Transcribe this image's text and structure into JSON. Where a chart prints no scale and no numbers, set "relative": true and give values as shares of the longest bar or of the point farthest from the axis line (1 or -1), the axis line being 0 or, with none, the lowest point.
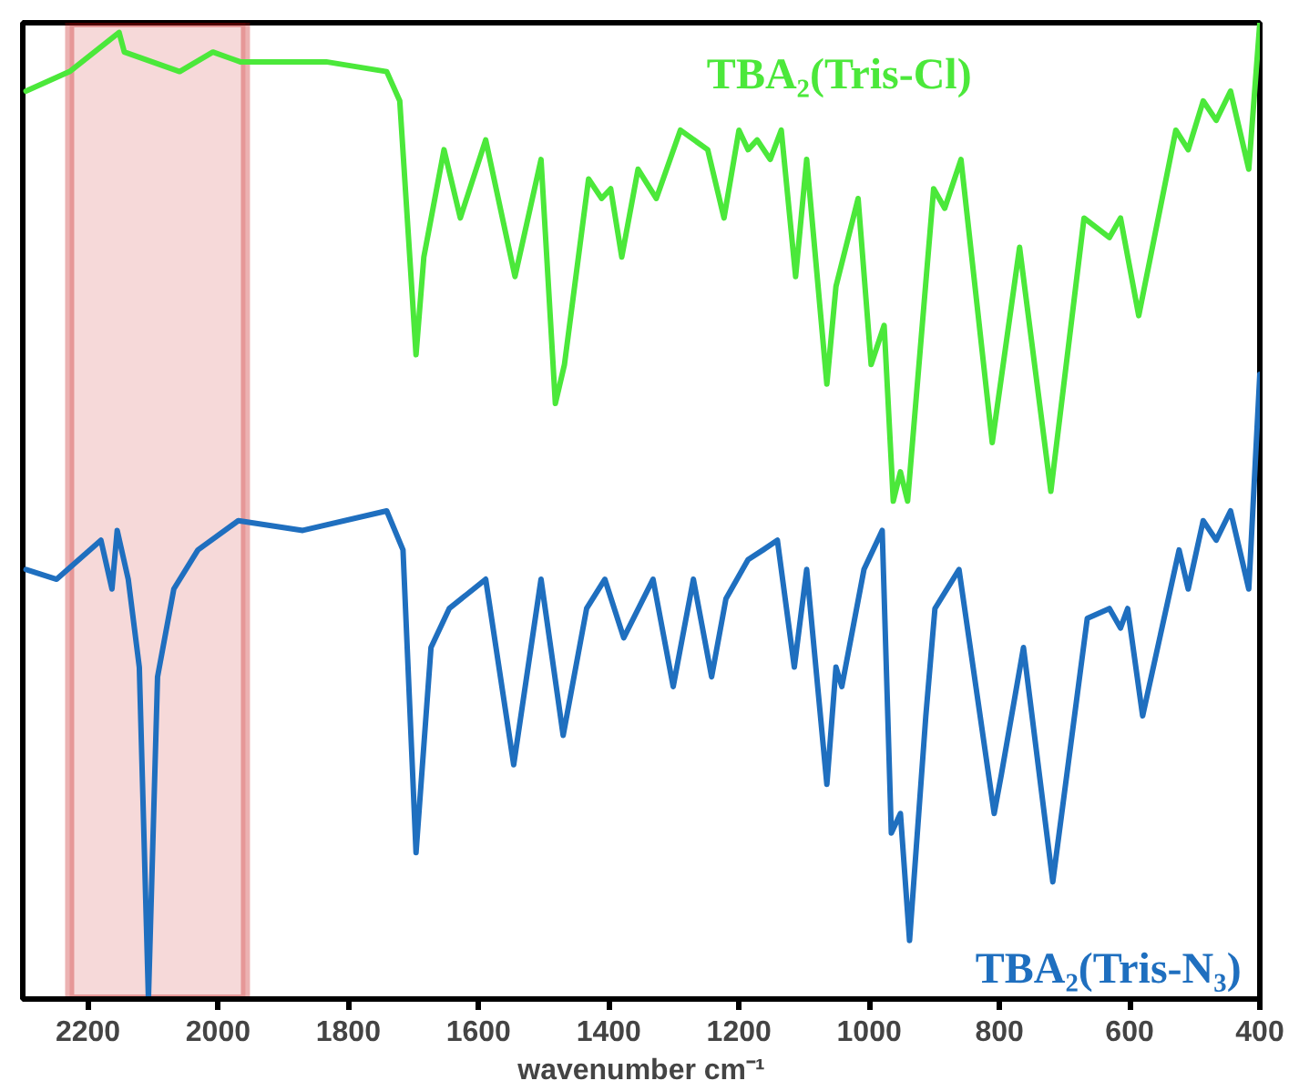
{
  "chart_data": {
    "type": "line",
    "relative": true,
    "xlabel": "wavenumber cm⁻¹",
    "xlim": [
      2300,
      400
    ],
    "xticks": [
      2200,
      2000,
      1800,
      1600,
      1400,
      1200,
      1000,
      800,
      600,
      400
    ],
    "grid": false,
    "legend": false,
    "line_style": "solid",
    "bands": [
      {
        "axis": "x",
        "from": 2228,
        "to": 1958,
        "color": "#c00000"
      }
    ],
    "series": [
      {
        "name": "TBA₂(Tris-Cl)",
        "color": "#4be83a",
        "x": [
          2295,
          2228,
          2152,
          2144,
          2059,
          2008,
          1966,
          1918,
          1834,
          1741,
          1721,
          1696,
          1684,
          1653,
          1628,
          1589,
          1544,
          1504,
          1482,
          1468,
          1431,
          1411,
          1397,
          1380,
          1355,
          1327,
          1290,
          1248,
          1223,
          1200,
          1186,
          1172,
          1152,
          1135,
          1113,
          1096,
          1065,
          1051,
          1017,
          997,
          977,
          963,
          952,
          941,
          901,
          884,
          859,
          811,
          769,
          721,
          670,
          631,
          614,
          586,
          529,
          510,
          487,
          467,
          445,
          417,
          400
        ],
        "values": [
          0.93,
          0.95,
          0.99,
          0.97,
          0.95,
          0.97,
          0.96,
          0.96,
          0.96,
          0.95,
          0.92,
          0.66,
          0.76,
          0.87,
          0.8,
          0.88,
          0.74,
          0.86,
          0.61,
          0.65,
          0.84,
          0.82,
          0.83,
          0.76,
          0.85,
          0.82,
          0.89,
          0.87,
          0.8,
          0.89,
          0.87,
          0.88,
          0.86,
          0.89,
          0.74,
          0.86,
          0.63,
          0.73,
          0.82,
          0.65,
          0.69,
          0.51,
          0.54,
          0.51,
          0.83,
          0.81,
          0.86,
          0.57,
          0.77,
          0.52,
          0.8,
          0.78,
          0.8,
          0.7,
          0.89,
          0.87,
          0.92,
          0.9,
          0.93,
          0.85,
          1.0
        ]
      },
      {
        "name": "TBA₂(Tris-N₃)",
        "color": "#1f6fbf",
        "x": [
          2295,
          2248,
          2180,
          2163,
          2155,
          2138,
          2121,
          2107,
          2093,
          2068,
          2031,
          1969,
          1870,
          1741,
          1716,
          1696,
          1673,
          1645,
          1589,
          1546,
          1504,
          1470,
          1434,
          1406,
          1377,
          1332,
          1301,
          1270,
          1242,
          1220,
          1186,
          1163,
          1141,
          1115,
          1096,
          1065,
          1051,
          1042,
          1008,
          980,
          966,
          952,
          938,
          913,
          899,
          862,
          808,
          797,
          763,
          718,
          665,
          631,
          614,
          603,
          580,
          524,
          510,
          487,
          467,
          445,
          417,
          400
        ],
        "values": [
          0.44,
          0.43,
          0.47,
          0.42,
          0.48,
          0.43,
          0.34,
          0,
          0.33,
          0.42,
          0.46,
          0.49,
          0.48,
          0.5,
          0.46,
          0.15,
          0.36,
          0.4,
          0.43,
          0.24,
          0.43,
          0.27,
          0.4,
          0.43,
          0.37,
          0.43,
          0.32,
          0.43,
          0.33,
          0.41,
          0.45,
          0.46,
          0.47,
          0.34,
          0.44,
          0.22,
          0.34,
          0.32,
          0.44,
          0.48,
          0.17,
          0.19,
          0.06,
          0.29,
          0.4,
          0.44,
          0.19,
          0.23,
          0.36,
          0.12,
          0.39,
          0.4,
          0.38,
          0.4,
          0.29,
          0.46,
          0.42,
          0.49,
          0.47,
          0.5,
          0.42,
          0.64
        ]
      }
    ]
  }
}
